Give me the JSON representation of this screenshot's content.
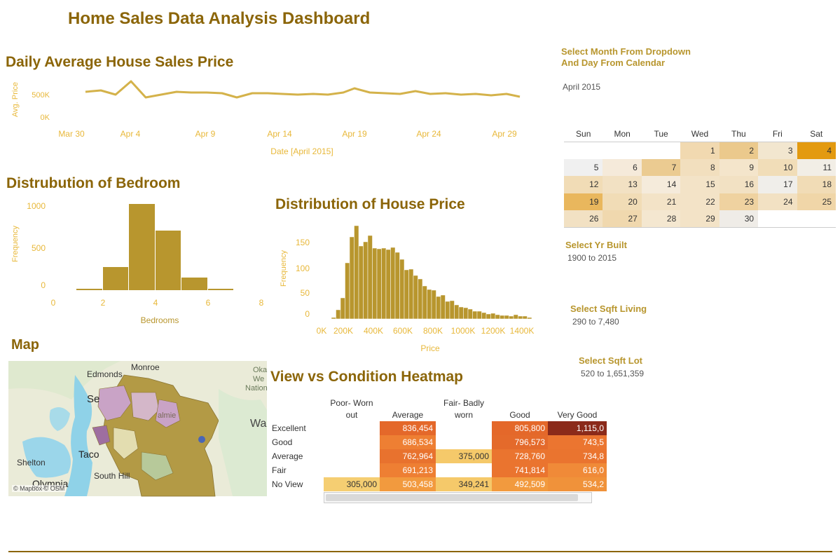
{
  "dashboard": {
    "title": "Home Sales Data Analysis Dashboard"
  },
  "daily_chart": {
    "title": "Daily Average House Sales Price",
    "ylabel": "Avg. Price",
    "xlabel": "Date [April 2015]",
    "y_ticks": [
      "500K",
      "0K"
    ],
    "x_ticks": [
      "Mar 30",
      "Apr 4",
      "Apr 9",
      "Apr 14",
      "Apr 19",
      "Apr 24",
      "Apr 29"
    ]
  },
  "bedroom_chart": {
    "title": "Distrubution of Bedroom",
    "ylabel": "Frequency",
    "xlabel": "Bedrooms",
    "y_ticks": [
      "1000",
      "500",
      "0"
    ],
    "x_ticks": [
      "0",
      "2",
      "4",
      "6",
      "8"
    ]
  },
  "price_chart": {
    "title": "Distribution of House Price",
    "ylabel": "Frequency",
    "xlabel": "Price",
    "y_ticks": [
      "150",
      "100",
      "50",
      "0"
    ],
    "x_ticks": [
      "0K",
      "200K",
      "400K",
      "600K",
      "800K",
      "1000K",
      "1200K",
      "1400K"
    ]
  },
  "heatmap": {
    "title": "View vs Condition Heatmap",
    "col_headers": [
      "Poor- Worn out",
      "Average",
      "Fair- Badly worn",
      "Good",
      "Very Good"
    ],
    "rows": [
      {
        "label": "Excellent",
        "cells": [
          "",
          "836,454",
          "",
          "805,800",
          "1,115,0"
        ]
      },
      {
        "label": "Good",
        "cells": [
          "",
          "686,534",
          "",
          "796,573",
          "743,5"
        ]
      },
      {
        "label": "Average",
        "cells": [
          "",
          "762,964",
          "375,000",
          "728,760",
          "734,8"
        ]
      },
      {
        "label": "Fair",
        "cells": [
          "",
          "691,213",
          "",
          "741,814",
          "616,0"
        ]
      },
      {
        "label": "No View",
        "cells": [
          "305,000",
          "503,458",
          "349,241",
          "492,509",
          "534,2"
        ]
      }
    ]
  },
  "map": {
    "title": "Map",
    "attribution": "© Mapbox © OSM",
    "places": [
      "Monroe",
      "Edmonds",
      "Se",
      "Shelton",
      "Taco",
      "South Hill",
      "Olympia",
      "Wa",
      "Oka",
      "We",
      "Nation",
      "almie"
    ]
  },
  "filters": {
    "month_label_1": "Select Month From Dropdown",
    "month_label_2": "And Day From Calendar",
    "month_value": "April 2015",
    "yr_built_label": "Select Yr Built",
    "yr_built_value": "1900 to 2015",
    "sqft_living_label": "Select Sqft Living",
    "sqft_living_value": "290 to 7,480",
    "sqft_lot_label": "Select Sqft Lot",
    "sqft_lot_value": "520 to 1,651,359"
  },
  "calendar": {
    "weekdays": [
      "Sun",
      "Mon",
      "Tue",
      "Wed",
      "Thu",
      "Fri",
      "Sat"
    ],
    "weeks": [
      [
        "",
        "",
        "",
        "1",
        "2",
        "3",
        "4"
      ],
      [
        "5",
        "6",
        "7",
        "8",
        "9",
        "10",
        "11"
      ],
      [
        "12",
        "13",
        "14",
        "15",
        "16",
        "17",
        "18"
      ],
      [
        "19",
        "20",
        "21",
        "22",
        "23",
        "24",
        "25"
      ],
      [
        "26",
        "27",
        "28",
        "29",
        "30",
        "",
        ""
      ]
    ]
  },
  "colors": {
    "title": "#8B6508",
    "bars": "#B8962E",
    "line": "#D4B24A",
    "axis_text": "#E8B83A",
    "heat_dark": "#8B2A1A",
    "heat_high": "#E4682A",
    "heat_mid": "#F29A3E",
    "heat_low": "#F5C96A"
  }
}
